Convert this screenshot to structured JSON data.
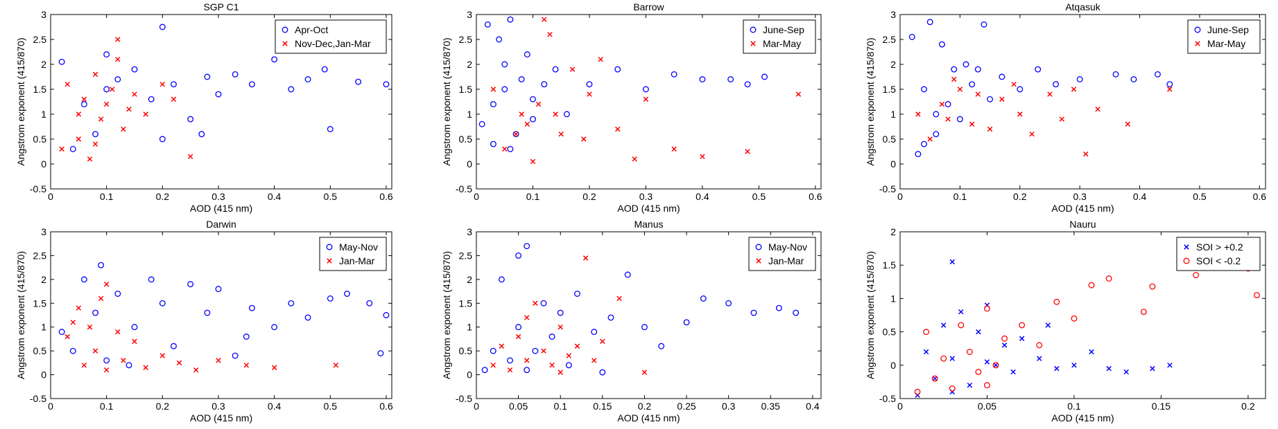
{
  "chart_data": [
    {
      "type": "scatter",
      "title": "SGP C1",
      "xlabel": "AOD (415 nm)",
      "ylabel": "Angstrom exponent (415/870)",
      "xlim": [
        0,
        0.61
      ],
      "ylim": [
        -0.5,
        3
      ],
      "xticks": [
        0,
        0.1,
        0.2,
        0.3,
        0.4,
        0.5,
        0.6
      ],
      "yticks": [
        -0.5,
        0,
        0.5,
        1,
        1.5,
        2,
        2.5,
        3
      ],
      "legend": "upper right",
      "series": [
        {
          "name": "Apr-Oct",
          "color": "#0000ff",
          "marker": "o",
          "x": [
            0.02,
            0.04,
            0.06,
            0.08,
            0.1,
            0.12,
            0.15,
            0.18,
            0.2,
            0.22,
            0.25,
            0.28,
            0.3,
            0.33,
            0.36,
            0.4,
            0.43,
            0.46,
            0.5,
            0.55,
            0.6,
            0.2,
            0.1,
            0.27,
            0.49
          ],
          "values": [
            2.05,
            0.3,
            1.2,
            0.6,
            1.5,
            1.7,
            1.9,
            1.3,
            2.75,
            1.6,
            0.9,
            1.75,
            1.4,
            1.8,
            1.6,
            2.1,
            1.5,
            1.7,
            0.7,
            1.65,
            1.6,
            0.5,
            2.2,
            0.6,
            1.9
          ]
        },
        {
          "name": "Nov-Dec,Jan-Mar",
          "color": "#ff0000",
          "marker": "x",
          "x": [
            0.02,
            0.03,
            0.05,
            0.06,
            0.07,
            0.08,
            0.09,
            0.1,
            0.11,
            0.12,
            0.13,
            0.14,
            0.15,
            0.17,
            0.2,
            0.22,
            0.25,
            0.12,
            0.05,
            0.08
          ],
          "values": [
            0.3,
            1.6,
            0.5,
            1.3,
            0.1,
            1.8,
            0.9,
            1.2,
            1.5,
            2.5,
            0.7,
            1.1,
            1.4,
            1.0,
            1.6,
            1.3,
            0.15,
            2.1,
            1.0,
            0.4
          ]
        }
      ]
    },
    {
      "type": "scatter",
      "title": "Barrow",
      "xlabel": "AOD (415 nm)",
      "ylabel": "Angstrom exponent (415/870)",
      "xlim": [
        0,
        0.61
      ],
      "ylim": [
        -0.5,
        3
      ],
      "xticks": [
        0,
        0.1,
        0.2,
        0.3,
        0.4,
        0.5,
        0.6
      ],
      "yticks": [
        -0.5,
        0,
        0.5,
        1,
        1.5,
        2,
        2.5,
        3
      ],
      "legend": "upper right",
      "series": [
        {
          "name": "June-Sep",
          "color": "#0000ff",
          "marker": "o",
          "x": [
            0.01,
            0.02,
            0.03,
            0.04,
            0.05,
            0.06,
            0.07,
            0.08,
            0.09,
            0.1,
            0.12,
            0.14,
            0.16,
            0.2,
            0.25,
            0.3,
            0.35,
            0.4,
            0.45,
            0.48,
            0.51,
            0.03,
            0.06,
            0.05,
            0.1
          ],
          "values": [
            0.8,
            2.8,
            0.4,
            2.5,
            1.5,
            2.9,
            0.6,
            1.7,
            2.2,
            1.3,
            1.6,
            1.9,
            1.0,
            1.6,
            1.9,
            1.5,
            1.8,
            1.7,
            1.7,
            1.6,
            1.75,
            1.2,
            0.3,
            2.0,
            0.9
          ]
        },
        {
          "name": "Mar-May",
          "color": "#ff0000",
          "marker": "x",
          "x": [
            0.03,
            0.05,
            0.07,
            0.08,
            0.1,
            0.11,
            0.12,
            0.14,
            0.15,
            0.17,
            0.19,
            0.2,
            0.22,
            0.25,
            0.28,
            0.3,
            0.35,
            0.4,
            0.48,
            0.57,
            0.13,
            0.09
          ],
          "values": [
            1.5,
            0.3,
            0.6,
            1.0,
            0.05,
            1.2,
            2.9,
            1.0,
            0.6,
            1.9,
            0.5,
            1.4,
            2.1,
            0.7,
            0.1,
            1.3,
            0.3,
            0.15,
            0.25,
            1.4,
            2.6,
            0.8
          ]
        }
      ]
    },
    {
      "type": "scatter",
      "title": "Atqasuk",
      "xlabel": "AOD (415 nm)",
      "ylabel": "Angstrom exponent (415/870)",
      "xlim": [
        0,
        0.61
      ],
      "ylim": [
        -0.5,
        3
      ],
      "xticks": [
        0,
        0.1,
        0.2,
        0.3,
        0.4,
        0.5,
        0.6
      ],
      "yticks": [
        -0.5,
        0,
        0.5,
        1,
        1.5,
        2,
        2.5,
        3
      ],
      "legend": "upper right",
      "series": [
        {
          "name": "June-Sep",
          "color": "#0000ff",
          "marker": "o",
          "x": [
            0.02,
            0.03,
            0.04,
            0.05,
            0.06,
            0.07,
            0.08,
            0.09,
            0.1,
            0.11,
            0.12,
            0.14,
            0.15,
            0.17,
            0.2,
            0.23,
            0.26,
            0.3,
            0.36,
            0.39,
            0.43,
            0.45,
            0.04,
            0.06,
            0.13
          ],
          "values": [
            2.55,
            0.2,
            1.5,
            2.85,
            0.6,
            2.4,
            1.2,
            1.9,
            0.9,
            2.0,
            1.6,
            2.8,
            1.3,
            1.75,
            1.5,
            1.9,
            1.6,
            1.7,
            1.8,
            1.7,
            1.8,
            1.6,
            0.4,
            1.0,
            1.9
          ]
        },
        {
          "name": "Mar-May",
          "color": "#ff0000",
          "marker": "x",
          "x": [
            0.03,
            0.05,
            0.07,
            0.08,
            0.1,
            0.12,
            0.13,
            0.15,
            0.17,
            0.19,
            0.2,
            0.22,
            0.25,
            0.27,
            0.29,
            0.31,
            0.33,
            0.38,
            0.45,
            0.09
          ],
          "values": [
            1.0,
            0.5,
            1.2,
            0.9,
            1.5,
            0.8,
            1.4,
            0.7,
            1.3,
            1.6,
            1.0,
            0.6,
            1.4,
            0.9,
            1.5,
            0.2,
            1.1,
            0.8,
            1.5,
            1.7
          ]
        }
      ]
    },
    {
      "type": "scatter",
      "title": "Darwin",
      "xlabel": "AOD (415 nm)",
      "ylabel": "Angstrom exponent (415/870)",
      "xlim": [
        0,
        0.61
      ],
      "ylim": [
        -0.5,
        3
      ],
      "xticks": [
        0,
        0.1,
        0.2,
        0.3,
        0.4,
        0.5,
        0.6
      ],
      "yticks": [
        -0.5,
        0,
        0.5,
        1,
        1.5,
        2,
        2.5,
        3
      ],
      "legend": "upper right",
      "series": [
        {
          "name": "May-Nov",
          "color": "#0000ff",
          "marker": "o",
          "x": [
            0.02,
            0.04,
            0.06,
            0.08,
            0.09,
            0.1,
            0.12,
            0.15,
            0.18,
            0.2,
            0.22,
            0.25,
            0.28,
            0.3,
            0.33,
            0.36,
            0.4,
            0.43,
            0.46,
            0.5,
            0.53,
            0.57,
            0.59,
            0.6,
            0.35,
            0.14
          ],
          "values": [
            0.9,
            0.5,
            2.0,
            1.3,
            2.3,
            0.3,
            1.7,
            1.0,
            2.0,
            1.5,
            0.6,
            1.9,
            1.3,
            1.8,
            0.4,
            1.4,
            1.0,
            1.5,
            1.2,
            1.6,
            1.7,
            1.5,
            0.45,
            1.25,
            0.8,
            0.2
          ]
        },
        {
          "name": "Jan-Mar",
          "color": "#ff0000",
          "marker": "x",
          "x": [
            0.03,
            0.05,
            0.06,
            0.07,
            0.08,
            0.09,
            0.1,
            0.12,
            0.13,
            0.15,
            0.17,
            0.2,
            0.23,
            0.26,
            0.3,
            0.35,
            0.4,
            0.51,
            0.1,
            0.04
          ],
          "values": [
            0.8,
            1.4,
            0.2,
            1.0,
            0.5,
            1.6,
            0.1,
            0.9,
            0.3,
            0.7,
            0.15,
            0.4,
            0.25,
            0.1,
            0.3,
            0.2,
            0.15,
            0.2,
            1.9,
            1.1
          ]
        }
      ]
    },
    {
      "type": "scatter",
      "title": "Manus",
      "xlabel": "AOD (415 nm)",
      "ylabel": "Angstrom exponent (415/870)",
      "xlim": [
        0,
        0.41
      ],
      "ylim": [
        -0.5,
        3
      ],
      "xticks": [
        0,
        0.05,
        0.1,
        0.15,
        0.2,
        0.25,
        0.3,
        0.35,
        0.4
      ],
      "yticks": [
        -0.5,
        0,
        0.5,
        1,
        1.5,
        2,
        2.5,
        3
      ],
      "legend": "upper right",
      "series": [
        {
          "name": "May-Nov",
          "color": "#0000ff",
          "marker": "o",
          "x": [
            0.01,
            0.02,
            0.03,
            0.04,
            0.05,
            0.05,
            0.06,
            0.07,
            0.08,
            0.09,
            0.1,
            0.11,
            0.12,
            0.14,
            0.16,
            0.18,
            0.2,
            0.22,
            0.25,
            0.27,
            0.3,
            0.33,
            0.36,
            0.38,
            0.06,
            0.15
          ],
          "values": [
            0.1,
            0.5,
            2.0,
            0.3,
            2.5,
            1.0,
            2.7,
            0.5,
            1.5,
            0.8,
            1.3,
            0.2,
            1.7,
            0.9,
            1.2,
            2.1,
            1.0,
            0.6,
            1.1,
            1.6,
            1.5,
            1.3,
            1.4,
            1.3,
            0.1,
            0.05
          ]
        },
        {
          "name": "Jan-Mar",
          "color": "#ff0000",
          "marker": "x",
          "x": [
            0.02,
            0.03,
            0.04,
            0.05,
            0.06,
            0.07,
            0.08,
            0.09,
            0.1,
            0.11,
            0.12,
            0.13,
            0.14,
            0.15,
            0.17,
            0.2,
            0.06,
            0.1
          ],
          "values": [
            0.2,
            0.6,
            0.1,
            0.8,
            0.3,
            1.5,
            0.5,
            0.2,
            1.0,
            0.4,
            0.6,
            2.45,
            0.3,
            0.7,
            1.6,
            0.05,
            1.2,
            0.05
          ]
        }
      ]
    },
    {
      "type": "scatter",
      "title": "Nauru",
      "xlabel": "AOD (415 nm)",
      "ylabel": "Angstrom exponent (415/870)",
      "xlim": [
        0,
        0.21
      ],
      "ylim": [
        -0.5,
        2
      ],
      "xticks": [
        0,
        0.05,
        0.1,
        0.15,
        0.2
      ],
      "yticks": [
        -0.5,
        0,
        0.5,
        1,
        1.5,
        2
      ],
      "legend": "upper right",
      "series": [
        {
          "name": "SOI > +0.2",
          "color": "#0000ff",
          "marker": "x",
          "x": [
            0.01,
            0.015,
            0.02,
            0.025,
            0.03,
            0.03,
            0.035,
            0.04,
            0.045,
            0.05,
            0.055,
            0.06,
            0.065,
            0.07,
            0.08,
            0.085,
            0.09,
            0.1,
            0.11,
            0.12,
            0.13,
            0.145,
            0.155,
            0.03,
            0.05
          ],
          "values": [
            -0.45,
            0.2,
            -0.2,
            0.6,
            1.55,
            0.1,
            0.8,
            -0.3,
            0.5,
            0.9,
            0.0,
            0.3,
            -0.1,
            0.4,
            0.1,
            0.6,
            -0.05,
            0.0,
            0.2,
            -0.05,
            -0.1,
            -0.05,
            0.0,
            -0.4,
            0.05
          ]
        },
        {
          "name": "SOI < -0.2",
          "color": "#ff0000",
          "marker": "o",
          "x": [
            0.01,
            0.015,
            0.02,
            0.025,
            0.03,
            0.035,
            0.04,
            0.045,
            0.05,
            0.055,
            0.06,
            0.07,
            0.08,
            0.09,
            0.1,
            0.11,
            0.12,
            0.14,
            0.145,
            0.17,
            0.2,
            0.205,
            0.05
          ],
          "values": [
            -0.4,
            0.5,
            -0.2,
            0.1,
            -0.35,
            0.6,
            0.2,
            -0.1,
            0.85,
            0.0,
            0.4,
            0.6,
            0.3,
            0.95,
            0.7,
            1.2,
            1.3,
            0.8,
            1.18,
            1.35,
            1.45,
            1.05,
            -0.3
          ]
        }
      ]
    }
  ]
}
